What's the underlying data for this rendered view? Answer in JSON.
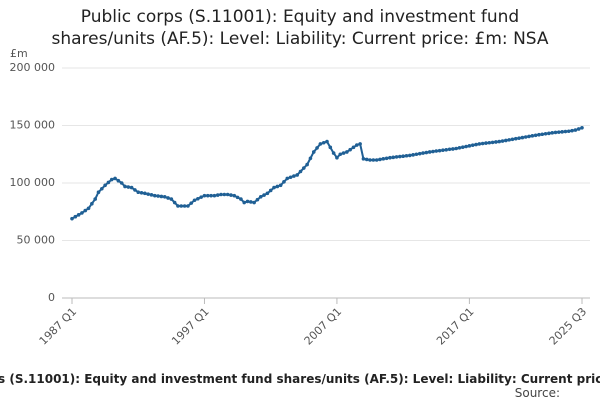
{
  "chart_data": {
    "type": "line",
    "title": "Public corps (S.11001): Equity and investment fund shares/units (AF.5): Level: Liability: Current price: £m: NSA",
    "y_label": "£m",
    "source": "Source:",
    "color": "#206095",
    "grid": true,
    "ylim": [
      0,
      200000
    ],
    "yticks": [
      0,
      {
        "value": 50000,
        "label": "50 000"
      },
      {
        "value": 100000,
        "label": "100 000"
      },
      {
        "value": 150000,
        "label": "150 000"
      },
      {
        "value": 200000,
        "label": "200 000"
      }
    ],
    "categories": [
      "1987 Q1",
      null,
      null,
      null,
      null,
      null,
      null,
      null,
      null,
      null,
      null,
      null,
      null,
      null,
      null,
      null,
      null,
      null,
      null,
      null,
      null,
      null,
      null,
      null,
      null,
      null,
      null,
      null,
      null,
      null,
      null,
      null,
      null,
      null,
      null,
      null,
      null,
      null,
      null,
      null,
      "1997 Q1",
      null,
      null,
      null,
      null,
      null,
      null,
      null,
      null,
      null,
      null,
      null,
      null,
      null,
      null,
      null,
      null,
      null,
      null,
      null,
      null,
      null,
      null,
      null,
      null,
      null,
      null,
      null,
      null,
      null,
      null,
      null,
      null,
      null,
      null,
      null,
      null,
      null,
      null,
      null,
      "2007 Q1",
      null,
      null,
      null,
      null,
      null,
      null,
      null,
      null,
      null,
      null,
      null,
      null,
      null,
      null,
      null,
      null,
      null,
      null,
      null,
      null,
      null,
      null,
      null,
      null,
      null,
      null,
      null,
      null,
      null,
      null,
      null,
      null,
      null,
      null,
      null,
      null,
      null,
      null,
      null,
      "2017 Q1",
      null,
      null,
      null,
      null,
      null,
      null,
      null,
      null,
      null,
      null,
      null,
      null,
      null,
      null,
      null,
      null,
      null,
      null,
      null,
      null,
      null,
      null,
      null,
      null,
      null,
      null,
      null,
      null,
      null,
      null,
      null,
      null,
      null,
      "2025 Q3"
    ],
    "values": [
      69000,
      70700,
      72300,
      74000,
      76000,
      78000,
      82000,
      86000,
      92000,
      95000,
      98000,
      100500,
      103000,
      104000,
      102000,
      100000,
      97000,
      96500,
      96000,
      94000,
      92000,
      91500,
      91000,
      90300,
      89700,
      89000,
      88700,
      88300,
      88000,
      87000,
      86000,
      83000,
      80000,
      80000,
      80000,
      80000,
      82500,
      85000,
      86300,
      87700,
      89000,
      89000,
      89000,
      89000,
      89500,
      90000,
      90000,
      90000,
      89500,
      89000,
      87500,
      86000,
      83000,
      84000,
      83500,
      83000,
      85500,
      88000,
      89500,
      91000,
      93500,
      96000,
      97000,
      98000,
      101000,
      104000,
      105000,
      106000,
      107000,
      110000,
      113000,
      116000,
      121500,
      127000,
      130500,
      134000,
      135000,
      136000,
      131000,
      126000,
      122000,
      125000,
      126000,
      127000,
      129000,
      131000,
      133000,
      134000,
      121000,
      120500,
      120000,
      120000,
      120000,
      120500,
      121000,
      121500,
      122000,
      122300,
      122700,
      123000,
      123300,
      123700,
      124000,
      124500,
      125000,
      125500,
      126000,
      126500,
      127000,
      127400,
      127800,
      128100,
      128500,
      128900,
      129300,
      129600,
      130000,
      130600,
      131100,
      131700,
      132300,
      132900,
      133400,
      134000,
      134300,
      134700,
      135000,
      135300,
      135700,
      136000,
      136500,
      137000,
      137500,
      138000,
      138500,
      139000,
      139500,
      140000,
      140500,
      141000,
      141500,
      142000,
      142400,
      142800,
      143200,
      143600,
      144000,
      144250,
      144500,
      144750,
      145000,
      145500,
      146000,
      147000,
      148000
    ]
  }
}
